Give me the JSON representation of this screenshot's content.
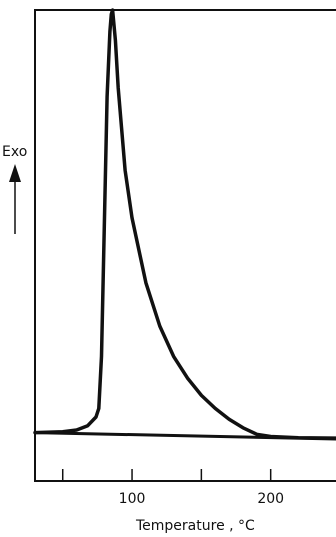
{
  "chart_data": {
    "type": "line",
    "title": "",
    "xlabel": "Temperature , °C",
    "ylabel": "Exo",
    "xlim": [
      30,
      250
    ],
    "ylim": [
      0,
      1
    ],
    "x_ticks_labeled": [
      100,
      200
    ],
    "x_minor_ticks": [
      50,
      100,
      150,
      200,
      250
    ],
    "grid": false,
    "series": [
      {
        "values": [
          {
            "x": 30,
            "y": 0.024
          },
          {
            "x": 50,
            "y": 0.026
          },
          {
            "x": 60,
            "y": 0.03
          },
          {
            "x": 68,
            "y": 0.04
          },
          {
            "x": 74,
            "y": 0.06
          },
          {
            "x": 76,
            "y": 0.08
          },
          {
            "x": 78,
            "y": 0.2
          },
          {
            "x": 80,
            "y": 0.5
          },
          {
            "x": 82,
            "y": 0.8
          },
          {
            "x": 84,
            "y": 0.95
          },
          {
            "x": 85,
            "y": 0.99
          },
          {
            "x": 86,
            "y": 1.0
          },
          {
            "x": 88,
            "y": 0.93
          },
          {
            "x": 90,
            "y": 0.82
          },
          {
            "x": 95,
            "y": 0.63
          },
          {
            "x": 100,
            "y": 0.52
          },
          {
            "x": 110,
            "y": 0.37
          },
          {
            "x": 120,
            "y": 0.27
          },
          {
            "x": 130,
            "y": 0.2
          },
          {
            "x": 140,
            "y": 0.15
          },
          {
            "x": 150,
            "y": 0.11
          },
          {
            "x": 160,
            "y": 0.08
          },
          {
            "x": 170,
            "y": 0.055
          },
          {
            "x": 180,
            "y": 0.035
          },
          {
            "x": 190,
            "y": 0.02
          },
          {
            "x": 200,
            "y": 0.015
          },
          {
            "x": 220,
            "y": 0.012
          },
          {
            "x": 250,
            "y": 0.011
          }
        ]
      }
    ],
    "baseline": [
      {
        "x": 30,
        "y": 0.024
      },
      {
        "x": 250,
        "y": 0.009
      }
    ],
    "colors": {
      "line": "#111111",
      "axis": "#111111"
    }
  }
}
